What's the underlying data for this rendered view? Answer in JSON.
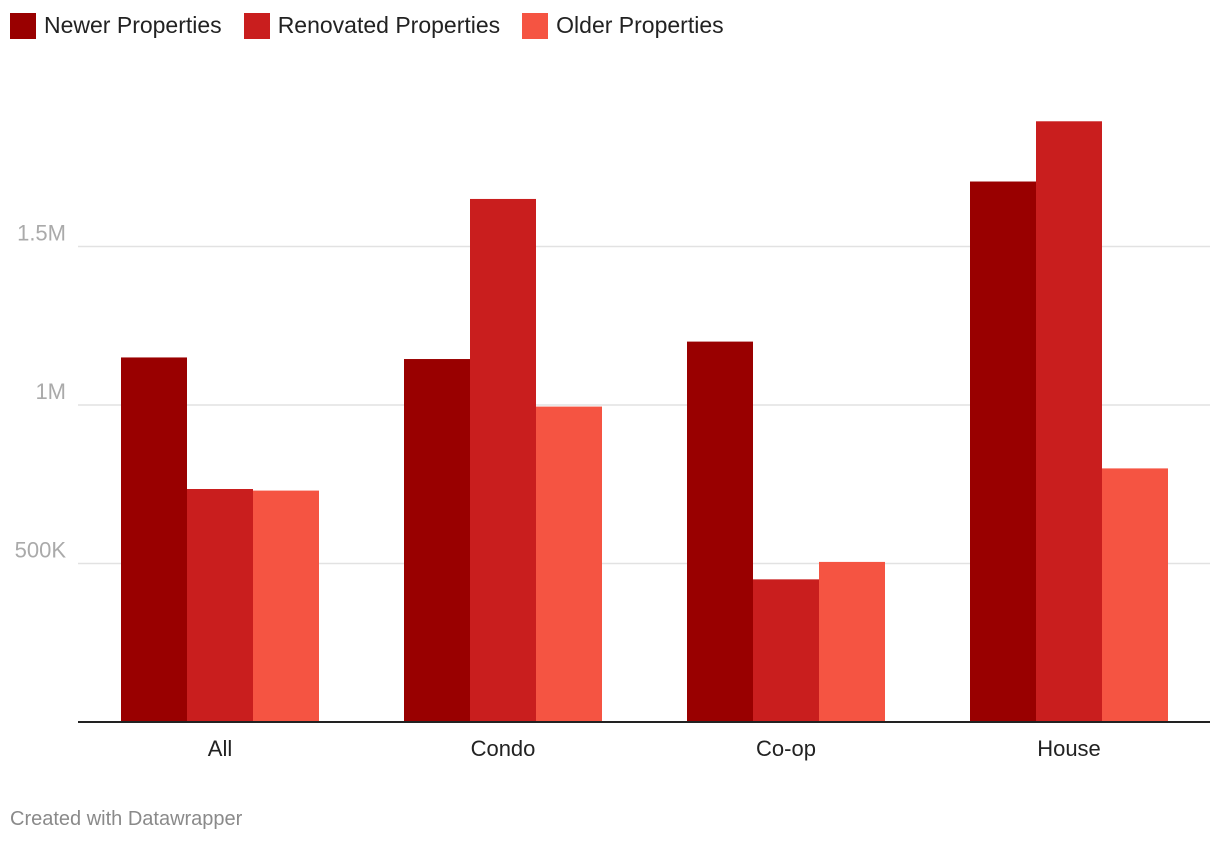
{
  "chart_data": {
    "type": "bar",
    "categories": [
      "All",
      "Condo",
      "Co-op",
      "House"
    ],
    "series": [
      {
        "name": "Newer Properties",
        "color": "#990000",
        "values": [
          1150000,
          1145000,
          1200000,
          1705000
        ]
      },
      {
        "name": "Renovated Properties",
        "color": "#c91e1e",
        "values": [
          735000,
          1650000,
          450000,
          1895000
        ]
      },
      {
        "name": "Older Properties",
        "color": "#f55442",
        "values": [
          730000,
          995000,
          505000,
          800000
        ]
      }
    ],
    "yticks": [
      {
        "value": 500000,
        "label": "500K"
      },
      {
        "value": 1000000,
        "label": "1M"
      },
      {
        "value": 1500000,
        "label": "1.5M"
      }
    ],
    "ylim": [
      0,
      2000000
    ],
    "grid": true,
    "legend_position": "top-left"
  },
  "footer": {
    "credit": "Created with Datawrapper"
  }
}
